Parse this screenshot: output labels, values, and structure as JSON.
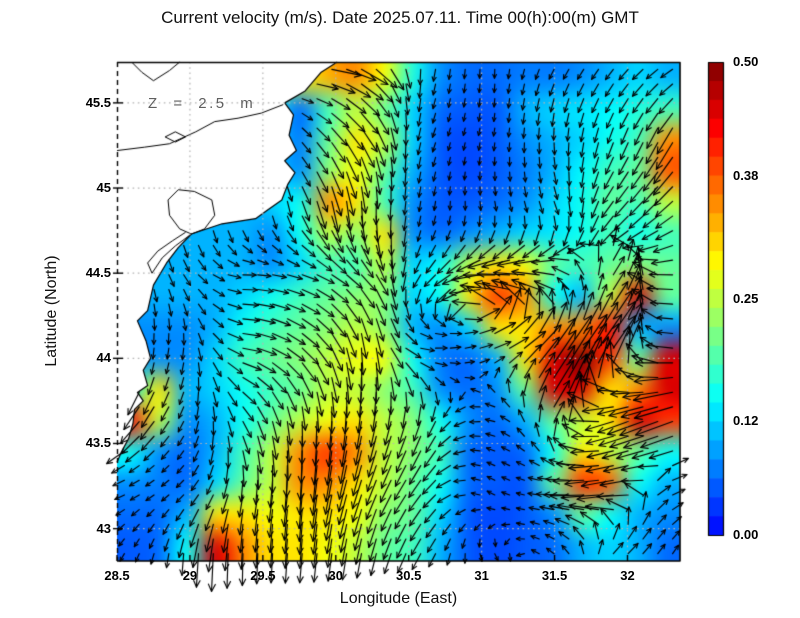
{
  "title": "Current velocity (m/s). Date 2025.07.11. Time 00(h):00(m) GMT",
  "annotation": {
    "text": "Z = 2.5 m",
    "color": "#5f5f5f"
  },
  "axes": {
    "x": {
      "label": "Longitude (East)",
      "tick_labels": [
        "28.5",
        "29",
        "29.5",
        "30",
        "30.5",
        "31",
        "31.5",
        "32"
      ],
      "tick_values": [
        28.5,
        29,
        29.5,
        30,
        30.5,
        31,
        31.5,
        32
      ],
      "range": [
        28.5,
        32.36
      ]
    },
    "y": {
      "label": "Latitude (North)",
      "tick_labels": [
        "45.5",
        "45",
        "44.5",
        "44",
        "43.5",
        "43"
      ],
      "tick_values": [
        45.5,
        45,
        44.5,
        44,
        43.5,
        43
      ],
      "range": [
        42.81,
        45.74
      ]
    },
    "grid": {
      "show": true,
      "style": "dotted",
      "color": "#b4b4b4"
    }
  },
  "colorbar": {
    "labels": [
      "0.50",
      "0.38",
      "0.25",
      "0.12",
      "0.00"
    ],
    "values": [
      0.5,
      0.38,
      0.25,
      0.12,
      0
    ],
    "min": 0,
    "max": 0.5,
    "palette": "jet",
    "bottom_color": "#0000ff",
    "top_color": "#800000"
  },
  "chart_data": {
    "type": "heatmap",
    "overlay": "quiver",
    "quantity": "current speed",
    "unit": "m/s",
    "title": "Current velocity (m/s). Date 2025.07.11. Time 00(h):00(m) GMT",
    "xlabel": "Longitude (East)",
    "ylabel": "Latitude (North)",
    "xlim": [
      28.5,
      32.36
    ],
    "ylim": [
      42.81,
      45.74
    ],
    "zlim": [
      0,
      0.5
    ],
    "arrow_color": "#000000",
    "speed_grid": {
      "ncols": 20,
      "nrows": 16,
      "order": "rows_north_to_south",
      "values": [
        [
          0.1,
          0.1,
          0.1,
          0.1,
          0.15,
          0.2,
          0.28,
          0.33,
          0.35,
          0.28,
          0.16,
          0.08,
          0.06,
          0.06,
          0.07,
          0.07,
          0.08,
          0.1,
          0.12,
          0.1
        ],
        [
          0.1,
          0.1,
          0.1,
          0.1,
          0.12,
          0.15,
          0.06,
          0.18,
          0.25,
          0.2,
          0.12,
          0.06,
          0.05,
          0.05,
          0.1,
          0.12,
          0.13,
          0.14,
          0.16,
          0.18
        ],
        [
          0.1,
          0.1,
          0.1,
          0.1,
          0.12,
          0.12,
          0.07,
          0.2,
          0.3,
          0.25,
          0.12,
          0.05,
          0.04,
          0.05,
          0.08,
          0.1,
          0.12,
          0.15,
          0.18,
          0.35
        ],
        [
          0.1,
          0.1,
          0.1,
          0.1,
          0.1,
          0.12,
          0.08,
          0.22,
          0.28,
          0.2,
          0.1,
          0.05,
          0.04,
          0.05,
          0.07,
          0.1,
          0.14,
          0.18,
          0.2,
          0.38
        ],
        [
          0.1,
          0.1,
          0.1,
          0.1,
          0.1,
          0.12,
          0.15,
          0.35,
          0.3,
          0.18,
          0.08,
          0.05,
          0.05,
          0.06,
          0.08,
          0.12,
          0.15,
          0.2,
          0.18,
          0.25
        ],
        [
          0.1,
          0.1,
          0.1,
          0.1,
          0.1,
          0.08,
          0.15,
          0.25,
          0.22,
          0.3,
          0.08,
          0.06,
          0.08,
          0.1,
          0.12,
          0.13,
          0.15,
          0.18,
          0.15,
          0.18
        ],
        [
          0.1,
          0.1,
          0.1,
          0.1,
          0.1,
          0.08,
          0.12,
          0.18,
          0.18,
          0.25,
          0.12,
          0.15,
          0.25,
          0.3,
          0.28,
          0.2,
          0.18,
          0.2,
          0.22,
          0.2
        ],
        [
          0.1,
          0.1,
          0.1,
          0.1,
          0.12,
          0.15,
          0.18,
          0.2,
          0.22,
          0.22,
          0.12,
          0.15,
          0.3,
          0.4,
          0.35,
          0.15,
          0.1,
          0.25,
          0.45,
          0.2
        ],
        [
          0.08,
          0.08,
          0.08,
          0.1,
          0.15,
          0.18,
          0.2,
          0.22,
          0.25,
          0.22,
          0.1,
          0.08,
          0.12,
          0.3,
          0.3,
          0.35,
          0.35,
          0.42,
          0.1,
          0.08
        ],
        [
          0.08,
          0.08,
          0.08,
          0.12,
          0.18,
          0.2,
          0.22,
          0.25,
          0.28,
          0.28,
          0.15,
          0.07,
          0.06,
          0.1,
          0.3,
          0.45,
          0.5,
          0.4,
          0.2,
          0.45
        ],
        [
          0.15,
          0.3,
          0.1,
          0.12,
          0.15,
          0.18,
          0.2,
          0.25,
          0.25,
          0.22,
          0.18,
          0.08,
          0.06,
          0.08,
          0.2,
          0.45,
          0.45,
          0.3,
          0.35,
          0.45
        ],
        [
          0.42,
          0.25,
          0.08,
          0.1,
          0.15,
          0.2,
          0.25,
          0.28,
          0.3,
          0.25,
          0.22,
          0.15,
          0.08,
          0.06,
          0.1,
          0.2,
          0.25,
          0.3,
          0.45,
          0.4
        ],
        [
          0.15,
          0.08,
          0.06,
          0.1,
          0.18,
          0.25,
          0.35,
          0.4,
          0.35,
          0.25,
          0.22,
          0.18,
          0.06,
          0.05,
          0.06,
          0.15,
          0.3,
          0.25,
          0.2,
          0.15
        ],
        [
          0.08,
          0.07,
          0.06,
          0.12,
          0.2,
          0.25,
          0.35,
          0.35,
          0.3,
          0.25,
          0.2,
          0.15,
          0.06,
          0.05,
          0.05,
          0.2,
          0.4,
          0.38,
          0.15,
          0.1
        ],
        [
          0.06,
          0.06,
          0.1,
          0.3,
          0.3,
          0.28,
          0.3,
          0.3,
          0.28,
          0.22,
          0.2,
          0.12,
          0.05,
          0.04,
          0.05,
          0.08,
          0.2,
          0.15,
          0.1,
          0.08
        ],
        [
          0.05,
          0.06,
          0.15,
          0.45,
          0.35,
          0.3,
          0.3,
          0.28,
          0.25,
          0.2,
          0.18,
          0.1,
          0.05,
          0.04,
          0.05,
          0.06,
          0.1,
          0.12,
          0.1,
          0.06
        ]
      ]
    },
    "direction_grid": {
      "ncols": 10,
      "nrows": 8,
      "convention": "deg_ccw_from_east",
      "values": [
        [
          -90,
          -90,
          -60,
          10,
          -30,
          -100,
          -90,
          -120,
          -130,
          -150
        ],
        [
          -90,
          -90,
          -90,
          -45,
          -60,
          -110,
          -100,
          -90,
          -110,
          -120
        ],
        [
          -90,
          -90,
          -95,
          -70,
          -90,
          -100,
          -80,
          -70,
          -130,
          -140
        ],
        [
          -90,
          -60,
          0,
          -20,
          -50,
          -130,
          180,
          170,
          55,
          185
        ],
        [
          -90,
          -100,
          -10,
          -45,
          -90,
          0,
          20,
          55,
          55,
          180
        ],
        [
          -135,
          -120,
          -60,
          -90,
          -100,
          -110,
          170,
          60,
          -160,
          -160
        ],
        [
          -160,
          -140,
          -100,
          -95,
          -110,
          -130,
          150,
          180,
          190,
          20
        ],
        [
          -120,
          -90,
          -90,
          -95,
          -100,
          -120,
          -60,
          140,
          40,
          60
        ]
      ]
    },
    "land": {
      "fill": "#ffffff",
      "coast_color": "#000000",
      "polygon": [
        [
          28.5,
          45.74
        ],
        [
          30.01,
          45.74
        ],
        [
          29.9,
          45.68
        ],
        [
          29.79,
          45.57
        ],
        [
          29.65,
          45.5
        ],
        [
          29.71,
          45.43
        ],
        [
          29.68,
          45.31
        ],
        [
          29.73,
          45.22
        ],
        [
          29.65,
          45.16
        ],
        [
          29.72,
          45.09
        ],
        [
          29.67,
          45.02
        ],
        [
          29.63,
          44.93
        ],
        [
          29.53,
          44.87
        ],
        [
          29.45,
          44.82
        ],
        [
          29.22,
          44.79
        ],
        [
          29.01,
          44.73
        ],
        [
          28.92,
          44.65
        ],
        [
          28.84,
          44.56
        ],
        [
          28.75,
          44.43
        ],
        [
          28.71,
          44.28
        ],
        [
          28.64,
          44.22
        ],
        [
          28.7,
          44.1
        ],
        [
          28.73,
          44.0
        ],
        [
          28.68,
          43.93
        ],
        [
          28.71,
          43.84
        ],
        [
          28.64,
          43.8
        ],
        [
          28.68,
          43.75
        ],
        [
          28.62,
          43.7
        ],
        [
          28.61,
          43.62
        ],
        [
          28.58,
          43.53
        ],
        [
          28.53,
          43.45
        ],
        [
          28.5,
          43.39
        ]
      ],
      "inner_shorelines": [
        [
          [
            29.64,
            45.49
          ],
          [
            29.49,
            45.44
          ],
          [
            29.33,
            45.41
          ],
          [
            29.17,
            45.39
          ],
          [
            29.04,
            45.33
          ],
          [
            28.86,
            45.26
          ],
          [
            28.69,
            45.24
          ],
          [
            28.5,
            45.22
          ]
        ],
        [
          [
            28.6,
            45.74
          ],
          [
            28.67,
            45.68
          ],
          [
            28.75,
            45.63
          ],
          [
            28.86,
            45.69
          ],
          [
            28.93,
            45.74
          ]
        ],
        [
          [
            28.92,
            44.99
          ],
          [
            29.03,
            44.98
          ],
          [
            29.15,
            44.93
          ],
          [
            29.17,
            44.84
          ],
          [
            29.1,
            44.76
          ],
          [
            29.01,
            44.73
          ],
          [
            28.93,
            44.76
          ],
          [
            28.86,
            44.84
          ],
          [
            28.85,
            44.93
          ],
          [
            28.92,
            44.99
          ]
        ],
        [
          [
            29.01,
            44.73
          ],
          [
            28.9,
            44.66
          ],
          [
            28.81,
            44.59
          ],
          [
            28.74,
            44.5
          ],
          [
            28.71,
            44.56
          ],
          [
            28.78,
            44.63
          ],
          [
            28.88,
            44.69
          ],
          [
            28.97,
            44.74
          ]
        ],
        [
          [
            28.83,
            45.3
          ],
          [
            28.9,
            45.33
          ],
          [
            28.97,
            45.3
          ],
          [
            28.9,
            45.27
          ],
          [
            28.83,
            45.3
          ]
        ]
      ]
    }
  }
}
